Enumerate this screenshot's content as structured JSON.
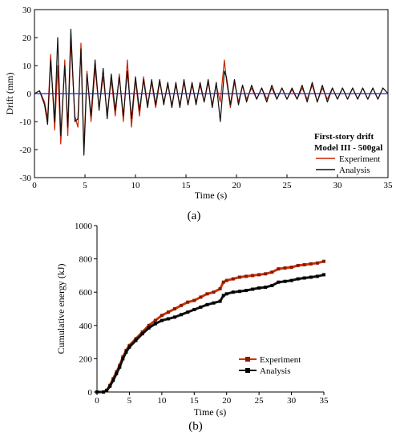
{
  "panel_a_label": "(a)",
  "panel_b_label": "(b)",
  "chart_data": [
    {
      "type": "line",
      "xlabel": "Time (s)",
      "ylabel": "Drift (mm)",
      "xlim": [
        0,
        35
      ],
      "ylim": [
        -30,
        30
      ],
      "x_ticks": [
        0,
        5,
        10,
        15,
        20,
        25,
        30,
        35
      ],
      "y_ticks": [
        -30,
        -20,
        -10,
        0,
        10,
        20,
        30
      ],
      "legend": {
        "placement": "bottom-right",
        "title_lines": [
          "First-story drift",
          "Model III - 500gal"
        ]
      },
      "reference_line": {
        "y": 0,
        "color": "#2222cc"
      },
      "series": [
        {
          "name": "Experiment",
          "color": "#cc2200",
          "x": [
            0,
            0.5,
            1,
            1.3,
            1.6,
            2,
            2.3,
            2.6,
            3,
            3.3,
            3.6,
            4,
            4.3,
            4.6,
            4.9,
            5.2,
            5.6,
            6,
            6.4,
            6.8,
            7.2,
            7.6,
            8,
            8.4,
            8.8,
            9.2,
            9.6,
            10,
            10.4,
            10.8,
            11.2,
            11.6,
            12,
            12.4,
            12.8,
            13.2,
            13.6,
            14,
            14.4,
            14.8,
            15.2,
            15.6,
            16,
            16.4,
            16.8,
            17.2,
            17.6,
            18,
            18.4,
            18.8,
            19,
            19.4,
            19.8,
            20.2,
            20.6,
            21,
            21.5,
            22,
            22.5,
            23,
            23.5,
            24,
            24.5,
            25,
            25.5,
            26,
            26.5,
            27,
            27.5,
            28,
            28.5,
            29,
            29.5,
            30,
            30.5,
            31,
            31.5,
            32,
            32.5,
            33,
            33.5,
            34,
            34.5,
            35
          ],
          "values": [
            0,
            1,
            -3,
            -9,
            14,
            -13,
            10,
            -18,
            12,
            -15,
            19,
            -8,
            -12,
            18,
            -20,
            8,
            -10,
            9,
            -5,
            6,
            -7,
            5,
            -8,
            7,
            -10,
            12,
            -12,
            5,
            -8,
            6,
            -4,
            4,
            -5,
            4,
            -3,
            3,
            -4,
            3,
            -4,
            4,
            -4,
            3,
            -3,
            3,
            -3,
            4,
            -4,
            3,
            -3,
            12,
            5,
            -5,
            4,
            -3,
            3,
            -2,
            2,
            -2,
            2,
            -2,
            2,
            -2,
            2,
            -2,
            1.5,
            -2,
            2,
            -2,
            3,
            -3,
            2,
            -2,
            2,
            -2,
            2,
            -2,
            2,
            -2,
            2,
            -2,
            2,
            -2,
            2,
            0
          ]
        },
        {
          "name": "Analysis",
          "color": "#111111",
          "x": [
            0,
            0.5,
            1,
            1.3,
            1.6,
            2,
            2.3,
            2.6,
            3,
            3.3,
            3.6,
            4,
            4.3,
            4.6,
            4.9,
            5.2,
            5.6,
            6,
            6.4,
            6.8,
            7.2,
            7.6,
            8,
            8.4,
            8.8,
            9.2,
            9.6,
            10,
            10.4,
            10.8,
            11.2,
            11.6,
            12,
            12.4,
            12.8,
            13.2,
            13.6,
            14,
            14.4,
            14.8,
            15.2,
            15.6,
            16,
            16.4,
            16.8,
            17.2,
            17.6,
            18,
            18.4,
            18.8,
            19,
            19.4,
            19.8,
            20.2,
            20.6,
            21,
            21.5,
            22,
            22.5,
            23,
            23.5,
            24,
            24.5,
            25,
            25.5,
            26,
            26.5,
            27,
            27.5,
            28,
            28.5,
            29,
            29.5,
            30,
            30.5,
            31,
            31.5,
            32,
            32.5,
            33,
            33.5,
            34,
            34.5,
            35
          ],
          "values": [
            0,
            1,
            -4,
            -11,
            12,
            -10,
            20,
            -15,
            10,
            -12,
            23,
            -10,
            -9,
            16,
            -22,
            7,
            -8,
            12,
            -6,
            9,
            -9,
            7,
            -6,
            6,
            -8,
            8,
            -9,
            6,
            -6,
            5,
            -5,
            5,
            -4,
            5,
            -4,
            4,
            -5,
            4,
            -5,
            5,
            -4,
            4,
            -4,
            4,
            -3,
            5,
            -5,
            4,
            -10,
            8,
            6,
            -4,
            5,
            -4,
            3,
            -3,
            3,
            -2,
            2,
            -3,
            3,
            -2,
            2,
            -2,
            2,
            -2,
            3,
            -3,
            4,
            -3,
            3,
            -3,
            2,
            -2,
            2,
            -2,
            2,
            -2,
            2,
            -2,
            2,
            -2,
            2,
            0
          ]
        }
      ]
    },
    {
      "type": "line",
      "xlabel": "Time (s)",
      "ylabel": "Cumulative energy (kJ)",
      "xlim": [
        0,
        35
      ],
      "ylim": [
        0,
        1000
      ],
      "x_ticks": [
        0,
        5,
        10,
        15,
        20,
        25,
        30,
        35
      ],
      "y_ticks": [
        0,
        200,
        400,
        600,
        800,
        1000
      ],
      "legend": {
        "placement": "bottom-right"
      },
      "series": [
        {
          "name": "Experiment",
          "color": "#cc3300",
          "x": [
            0,
            1,
            1.5,
            2,
            2.5,
            3,
            3.5,
            4,
            4.5,
            5,
            6,
            7,
            8,
            9,
            10,
            11,
            12,
            13,
            14,
            15,
            16,
            17,
            18,
            19,
            19.5,
            20,
            21,
            22,
            23,
            24,
            25,
            26,
            27,
            28,
            29,
            30,
            31,
            32,
            33,
            34,
            35
          ],
          "values": [
            0,
            0,
            10,
            40,
            80,
            120,
            160,
            210,
            250,
            280,
            320,
            360,
            400,
            430,
            460,
            480,
            500,
            520,
            540,
            550,
            570,
            590,
            600,
            620,
            660,
            670,
            680,
            690,
            695,
            700,
            705,
            710,
            720,
            740,
            745,
            750,
            760,
            765,
            770,
            775,
            785
          ]
        },
        {
          "name": "Analysis",
          "color": "#111111",
          "x": [
            0,
            1,
            1.5,
            2,
            2.5,
            3,
            3.5,
            4,
            4.5,
            5,
            6,
            7,
            8,
            9,
            10,
            11,
            12,
            13,
            14,
            15,
            16,
            17,
            18,
            19,
            19.5,
            20,
            21,
            22,
            23,
            24,
            25,
            26,
            27,
            28,
            29,
            30,
            31,
            32,
            33,
            34,
            35
          ],
          "values": [
            0,
            0,
            8,
            35,
            70,
            110,
            150,
            200,
            240,
            270,
            310,
            350,
            385,
            410,
            430,
            440,
            450,
            465,
            480,
            495,
            510,
            525,
            535,
            545,
            580,
            590,
            600,
            605,
            610,
            618,
            625,
            630,
            640,
            660,
            665,
            670,
            680,
            685,
            690,
            695,
            705
          ]
        }
      ]
    }
  ]
}
